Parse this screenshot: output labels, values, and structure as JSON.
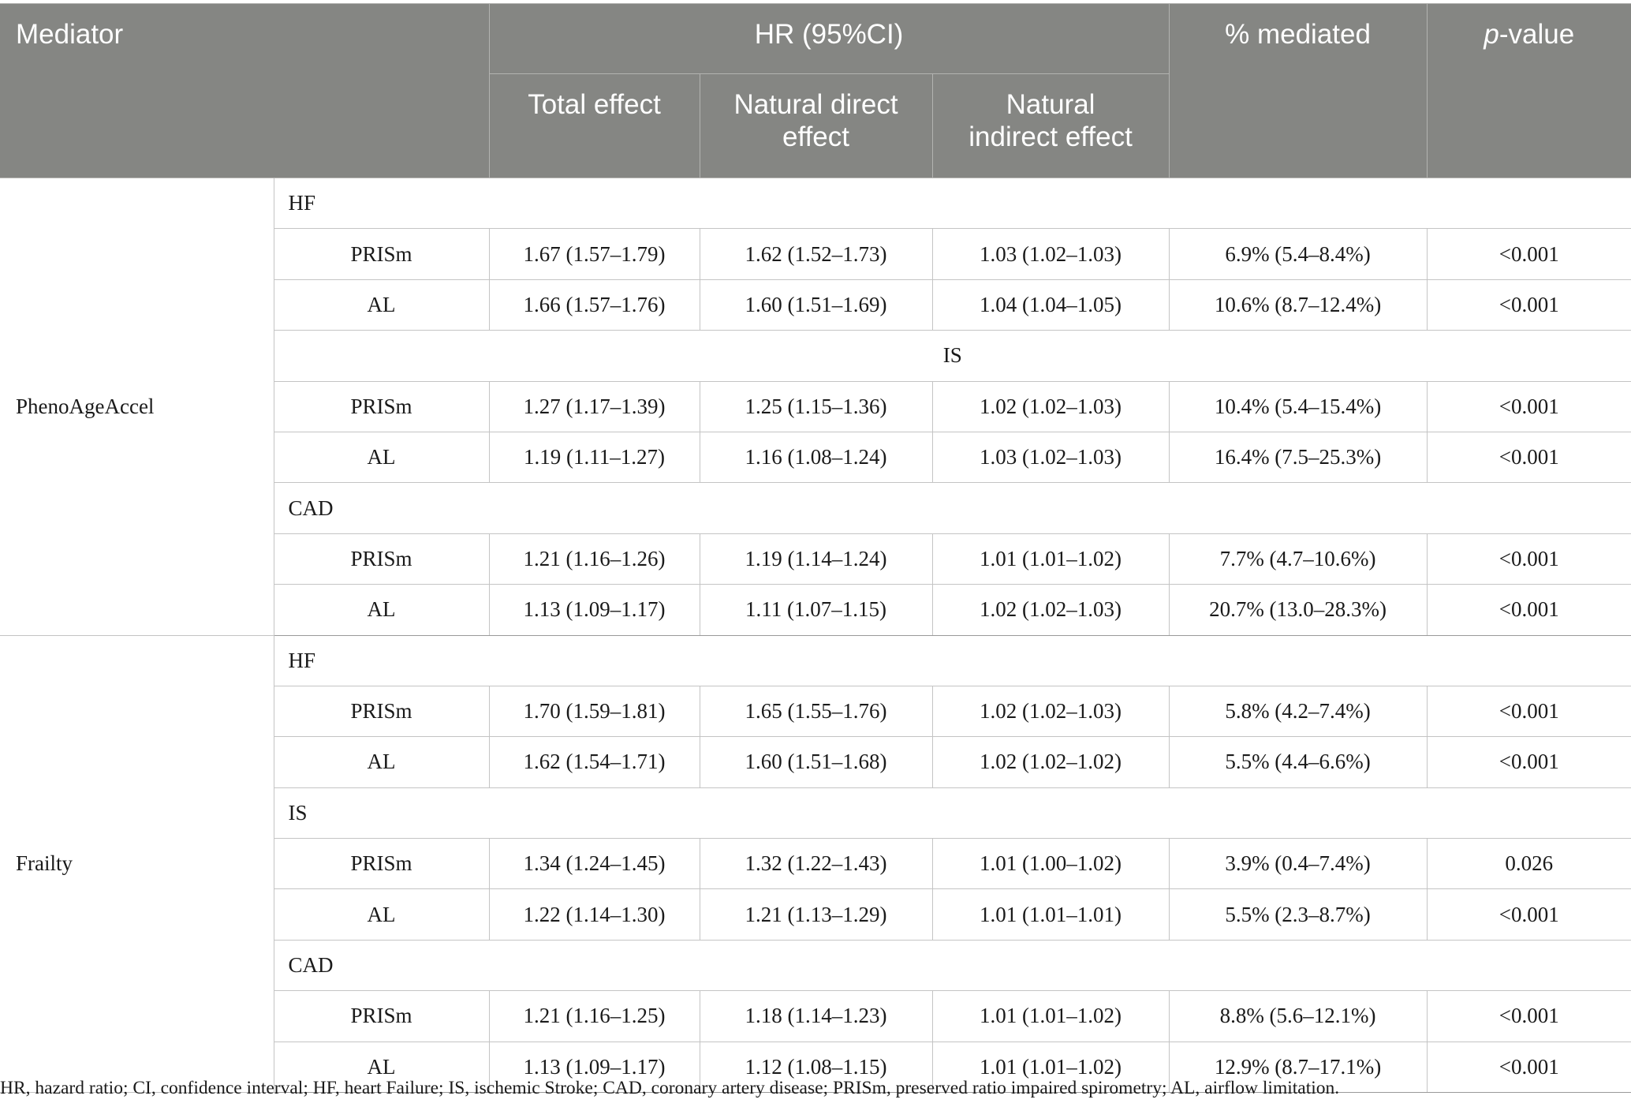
{
  "header": {
    "mediator": "Mediator",
    "hr_group": "HR (95%CI)",
    "total_effect": "Total effect",
    "direct_line1": "Natural direct",
    "direct_line2": "effect",
    "indirect_line1": "Natural",
    "indirect_line2": "indirect effect",
    "pct_mediated": "% mediated",
    "p_italic": "p",
    "p_suffix": "-value"
  },
  "groups": [
    {
      "mediator": "PhenoAgeAccel",
      "outcomes": [
        {
          "label": "HF",
          "rows": [
            [
              "PRISm",
              "1.67 (1.57–1.79)",
              "1.62 (1.52–1.73)",
              "1.03 (1.02–1.03)",
              "6.9% (5.4–8.4%)",
              "<0.001"
            ],
            [
              "AL",
              "1.66 (1.57–1.76)",
              "1.60 (1.51–1.69)",
              "1.04 (1.04–1.05)",
              "10.6% (8.7–12.4%)",
              "<0.001"
            ]
          ]
        },
        {
          "label": "IS",
          "rows": [
            [
              "PRISm",
              "1.27 (1.17–1.39)",
              "1.25 (1.15–1.36)",
              "1.02 (1.02–1.03)",
              "10.4% (5.4–15.4%)",
              "<0.001"
            ],
            [
              "AL",
              "1.19 (1.11–1.27)",
              "1.16 (1.08–1.24)",
              "1.03 (1.02–1.03)",
              "16.4% (7.5–25.3%)",
              "<0.001"
            ]
          ]
        },
        {
          "label": "CAD",
          "rows": [
            [
              "PRISm",
              "1.21 (1.16–1.26)",
              "1.19 (1.14–1.24)",
              "1.01 (1.01–1.02)",
              "7.7% (4.7–10.6%)",
              "<0.001"
            ],
            [
              "AL",
              "1.13 (1.09–1.17)",
              "1.11 (1.07–1.15)",
              "1.02 (1.02–1.03)",
              "20.7% (13.0–28.3%)",
              "<0.001"
            ]
          ]
        }
      ]
    },
    {
      "mediator": "Frailty",
      "outcomes": [
        {
          "label": "HF",
          "rows": [
            [
              "PRISm",
              "1.70 (1.59–1.81)",
              "1.65 (1.55–1.76)",
              "1.02 (1.02–1.03)",
              "5.8% (4.2–7.4%)",
              "<0.001"
            ],
            [
              "AL",
              "1.62 (1.54–1.71)",
              "1.60 (1.51–1.68)",
              "1.02 (1.02–1.02)",
              "5.5% (4.4–6.6%)",
              "<0.001"
            ]
          ]
        },
        {
          "label": "IS",
          "rows": [
            [
              "PRISm",
              "1.34 (1.24–1.45)",
              "1.32 (1.22–1.43)",
              "1.01 (1.00–1.02)",
              "3.9% (0.4–7.4%)",
              "0.026"
            ],
            [
              "AL",
              "1.22 (1.14–1.30)",
              "1.21 (1.13–1.29)",
              "1.01 (1.01–1.01)",
              "5.5% (2.3–8.7%)",
              "<0.001"
            ]
          ]
        },
        {
          "label": "CAD",
          "rows": [
            [
              "PRISm",
              "1.21 (1.16–1.25)",
              "1.18 (1.14–1.23)",
              "1.01 (1.01–1.02)",
              "8.8% (5.6–12.1%)",
              "<0.001"
            ],
            [
              "AL",
              "1.13 (1.09–1.17)",
              "1.12 (1.08–1.15)",
              "1.01 (1.01–1.02)",
              "12.9% (8.7–17.1%)",
              "<0.001"
            ]
          ]
        }
      ]
    }
  ],
  "footnote": "HR, hazard ratio; CI, confidence interval; HF, heart Failure; IS, ischemic Stroke; CAD, coronary artery disease; PRISm, preserved ratio impaired spirometry; AL, airflow limitation.",
  "colors": {
    "header_background": "#858683",
    "header_text": "#ffffff",
    "grid_line": "#c4c4c4"
  }
}
